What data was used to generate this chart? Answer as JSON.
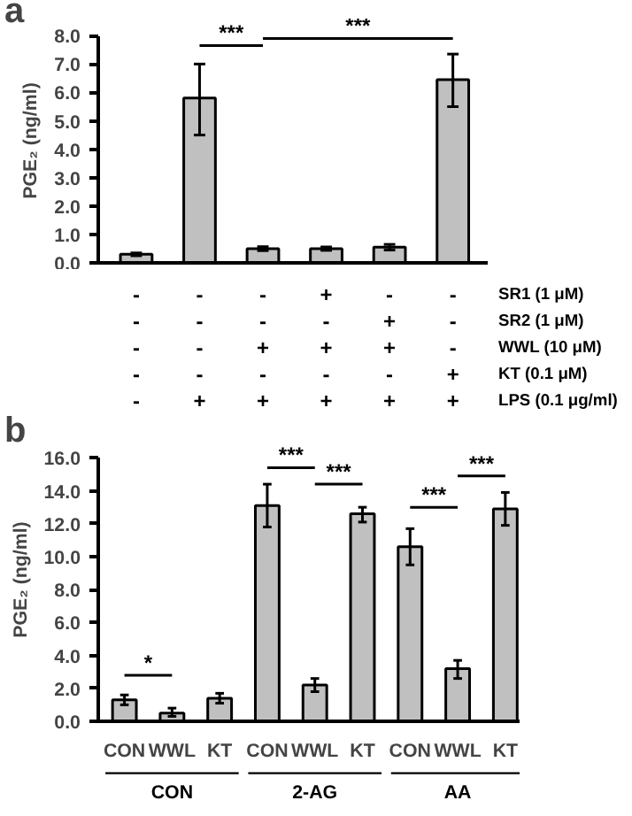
{
  "chart_data": [
    {
      "type": "bar",
      "title": "a",
      "ylabel": "PGE₂ (ng/ml)",
      "categories": [
        "-\n-\n-\n-\n-",
        "-\n-\n-\n-\n+",
        "-\n-\n+\n-\n+",
        "+\n-\n+\n-\n+",
        "-\n+\n+\n-\n+",
        "-\n-\n-\n+\n+"
      ],
      "values": [
        0.3,
        5.8,
        0.5,
        0.5,
        0.55,
        6.45
      ],
      "errors": [
        [
          0.25,
          0.35
        ],
        [
          4.5,
          7.0
        ],
        [
          0.43,
          0.57
        ],
        [
          0.44,
          0.56
        ],
        [
          0.45,
          0.65
        ],
        [
          5.5,
          7.35
        ]
      ],
      "color": "#c0c0c0",
      "ylim": [
        0,
        8
      ],
      "yticks": [
        {
          "value": 0,
          "label": "0.0"
        },
        {
          "value": 1,
          "label": "1.0"
        },
        {
          "value": 2,
          "label": "2.0"
        },
        {
          "value": 3,
          "label": "3.0"
        },
        {
          "value": 4,
          "label": "4.0"
        },
        {
          "value": 5,
          "label": "5.0"
        },
        {
          "value": 6,
          "label": "6.0"
        },
        {
          "value": 7,
          "label": "7.0"
        },
        {
          "value": 8,
          "label": "8.0"
        }
      ],
      "annotations": [
        "***",
        "***",
        "SR1 (1 μM)",
        "SR2 (1 μM)",
        "WWL (10 μM)",
        "KT (0.1 μM)",
        "LPS (0.1 μg/ml)"
      ],
      "grid": false
    },
    {
      "type": "bar",
      "title": "b",
      "ylabel": "PGE₂ (ng/ml)",
      "categories": [
        "CON",
        "WWL",
        "KT",
        "CON",
        "WWL",
        "KT",
        "CON",
        "WWL",
        "KT"
      ],
      "values": [
        1.3,
        0.5,
        1.4,
        13.1,
        2.2,
        12.6,
        10.6,
        3.2,
        12.9
      ],
      "errors": [
        [
          1.0,
          1.6
        ],
        [
          0.3,
          0.8
        ],
        [
          1.1,
          1.7
        ],
        [
          11.8,
          14.4
        ],
        [
          1.8,
          2.6
        ],
        [
          12.1,
          13.0
        ],
        [
          9.5,
          11.7
        ],
        [
          2.6,
          3.7
        ],
        [
          11.9,
          13.9
        ]
      ],
      "color": "#c0c0c0",
      "ylim": [
        0,
        16
      ],
      "yticks": [
        {
          "value": 0,
          "label": "0.0"
        },
        {
          "value": 2,
          "label": "2.0"
        },
        {
          "value": 4,
          "label": "4.0"
        },
        {
          "value": 6,
          "label": "6.0"
        },
        {
          "value": 8,
          "label": "8.0"
        },
        {
          "value": 10,
          "label": "10.0"
        },
        {
          "value": 12,
          "label": "12.0"
        },
        {
          "value": 14,
          "label": "14.0"
        },
        {
          "value": 16,
          "label": "16.0"
        }
      ],
      "annotations": [
        "*",
        "***",
        "***",
        "***",
        "***",
        "CON",
        "2-AG",
        "AA"
      ],
      "grid": false
    }
  ]
}
